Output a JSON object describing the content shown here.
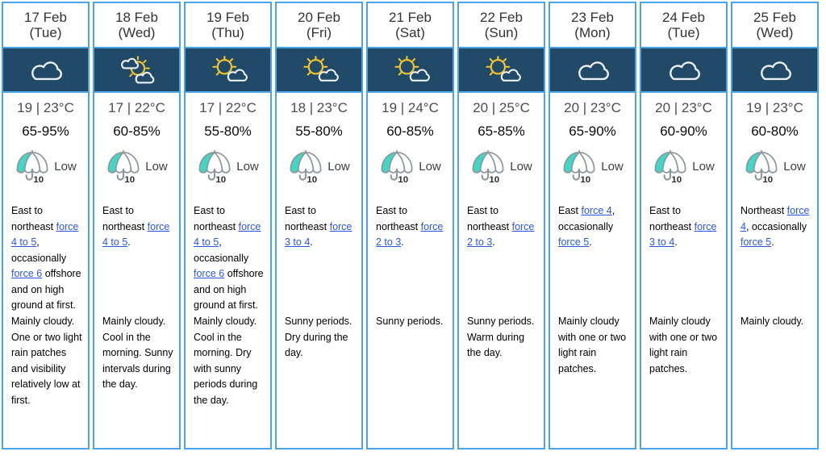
{
  "theme": {
    "border_blue": "#4BA3E8",
    "banner_navy": "#204A67",
    "link_blue": "#2B57E0",
    "umbrella_teal": "#41D7C6",
    "umbrella_gray": "#8F969B",
    "sun_yellow": "#EFC32F",
    "icon_white": "#ECEFF2"
  },
  "columns": [
    {
      "date": "17 Feb",
      "weekday": "(Tue)",
      "icon": "cloudy-icon",
      "temperature": "19 | 23°C",
      "humidity": "65-95%",
      "umbrella_badge": "10",
      "rain_probability": "Low",
      "wind": [
        {
          "text": "East to northeast "
        },
        {
          "link": "force 4 to 5"
        },
        {
          "text": ", occasionally "
        },
        {
          "link": "force 6"
        },
        {
          "text": " offshore and on high ground at first."
        }
      ],
      "weather": "Mainly cloudy. One or two light rain patches and visibility relatively low at first."
    },
    {
      "date": "18 Feb",
      "weekday": "(Wed)",
      "icon": "sunny-intervals-icon",
      "temperature": "17 | 22°C",
      "humidity": "60-85%",
      "umbrella_badge": "10",
      "rain_probability": "Low",
      "wind": [
        {
          "text": "East to northeast "
        },
        {
          "link": "force 4 to 5"
        },
        {
          "text": "."
        }
      ],
      "weather": "Mainly cloudy. Cool in the morning. Sunny intervals during the day."
    },
    {
      "date": "19 Feb",
      "weekday": "(Thu)",
      "icon": "sunny-periods-icon",
      "temperature": "17 | 22°C",
      "humidity": "55-80%",
      "umbrella_badge": "10",
      "rain_probability": "Low",
      "wind": [
        {
          "text": "East to northeast "
        },
        {
          "link": "force 4 to 5"
        },
        {
          "text": ", occasionally "
        },
        {
          "link": "force 6"
        },
        {
          "text": " offshore and on high ground at first."
        }
      ],
      "weather": "Mainly cloudy. Cool in the morning. Dry with sunny periods during the day."
    },
    {
      "date": "20 Feb",
      "weekday": "(Fri)",
      "icon": "sunny-periods-icon",
      "temperature": "18 | 23°C",
      "humidity": "55-80%",
      "umbrella_badge": "10",
      "rain_probability": "Low",
      "wind": [
        {
          "text": "East to northeast "
        },
        {
          "link": "force 3 to 4"
        },
        {
          "text": "."
        }
      ],
      "weather": "Sunny periods. Dry during the day."
    },
    {
      "date": "21 Feb",
      "weekday": "(Sat)",
      "icon": "sunny-periods-icon",
      "temperature": "19 | 24°C",
      "humidity": "60-85%",
      "umbrella_badge": "10",
      "rain_probability": "Low",
      "wind": [
        {
          "text": "East to northeast "
        },
        {
          "link": "force 2 to 3"
        },
        {
          "text": "."
        }
      ],
      "weather": "Sunny periods."
    },
    {
      "date": "22 Feb",
      "weekday": "(Sun)",
      "icon": "sunny-periods-icon",
      "temperature": "20 | 25°C",
      "humidity": "65-85%",
      "umbrella_badge": "10",
      "rain_probability": "Low",
      "wind": [
        {
          "text": "East to northeast "
        },
        {
          "link": "force 2 to 3"
        },
        {
          "text": "."
        }
      ],
      "weather": "Sunny periods. Warm during the day."
    },
    {
      "date": "23 Feb",
      "weekday": "(Mon)",
      "icon": "cloudy-icon",
      "temperature": "20 | 23°C",
      "humidity": "65-90%",
      "umbrella_badge": "10",
      "rain_probability": "Low",
      "wind": [
        {
          "text": "East "
        },
        {
          "link": "force 4"
        },
        {
          "text": ", occasionally "
        },
        {
          "link": "force 5"
        },
        {
          "text": "."
        }
      ],
      "weather": "Mainly cloudy with one or two light rain patches."
    },
    {
      "date": "24 Feb",
      "weekday": "(Tue)",
      "icon": "cloudy-icon",
      "temperature": "20 | 23°C",
      "humidity": "60-90%",
      "umbrella_badge": "10",
      "rain_probability": "Low",
      "wind": [
        {
          "text": "East to northeast "
        },
        {
          "link": "force 3 to 4"
        },
        {
          "text": "."
        }
      ],
      "weather": "Mainly cloudy with one or two light rain patches."
    },
    {
      "date": "25 Feb",
      "weekday": "(Wed)",
      "icon": "cloudy-icon",
      "temperature": "19 | 23°C",
      "humidity": "60-80%",
      "umbrella_badge": "10",
      "rain_probability": "Low",
      "wind": [
        {
          "text": "Northeast "
        },
        {
          "link": "force 4"
        },
        {
          "text": ", occasionally "
        },
        {
          "link": "force 5"
        },
        {
          "text": "."
        }
      ],
      "weather": "Mainly cloudy."
    }
  ]
}
